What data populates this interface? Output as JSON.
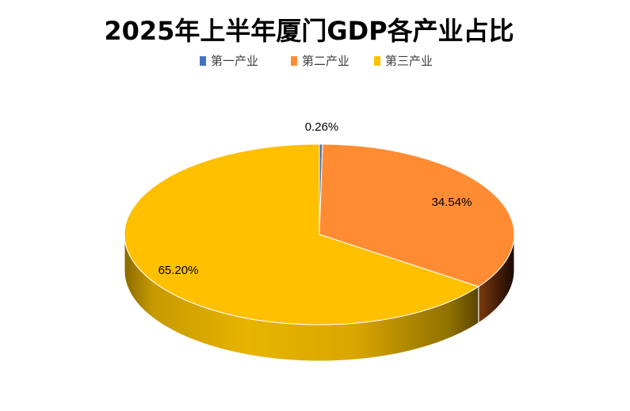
{
  "chart_data": {
    "type": "pie",
    "title": "2025年上半年厦门GDP各产业占比",
    "categories": [
      "第一产业",
      "第二产业",
      "第三产业"
    ],
    "values": [
      0.26,
      34.54,
      65.2
    ],
    "data_labels": [
      "0.26%",
      "34.54%",
      "65.20%"
    ],
    "colors": [
      "#4472C4",
      "#FF8C33",
      "#FFC000"
    ],
    "legend_position": "top",
    "style": "3d"
  }
}
